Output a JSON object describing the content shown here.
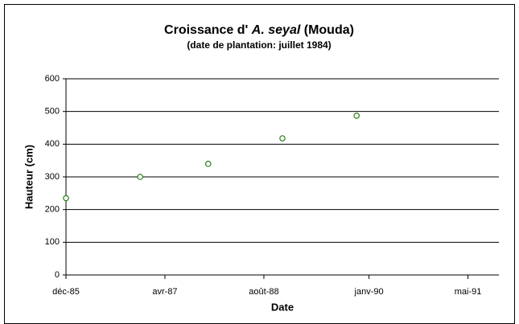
{
  "chart_data": {
    "type": "line",
    "title": [
      "Croissance d'",
      "A. seyal",
      "(Mouda)"
    ],
    "subtitle": "(date de plantation: juillet 1984)",
    "x_label": "Date",
    "y_label": "Hauteur (cm)",
    "x": [
      "1985-12",
      "1986-12",
      "1987-11",
      "1988-11",
      "1989-11"
    ],
    "series": [
      {
        "name": "Hauteur",
        "color": "#2a7d1a",
        "values": [
          235,
          300,
          340,
          418,
          487
        ]
      }
    ],
    "xlim": [
      "1985-12",
      "1991-10"
    ],
    "xticks": [
      {
        "value": "1985-12",
        "label": "déc-85"
      },
      {
        "value": "1987-04",
        "label": "avr-87"
      },
      {
        "value": "1988-08",
        "label": "août-88"
      },
      {
        "value": "1990-01",
        "label": "janv-90"
      },
      {
        "value": "1991-05",
        "label": "mai-91"
      }
    ],
    "ylim": [
      0,
      600
    ],
    "yticks": [
      0,
      100,
      200,
      300,
      400,
      500,
      600
    ],
    "grid": true
  }
}
